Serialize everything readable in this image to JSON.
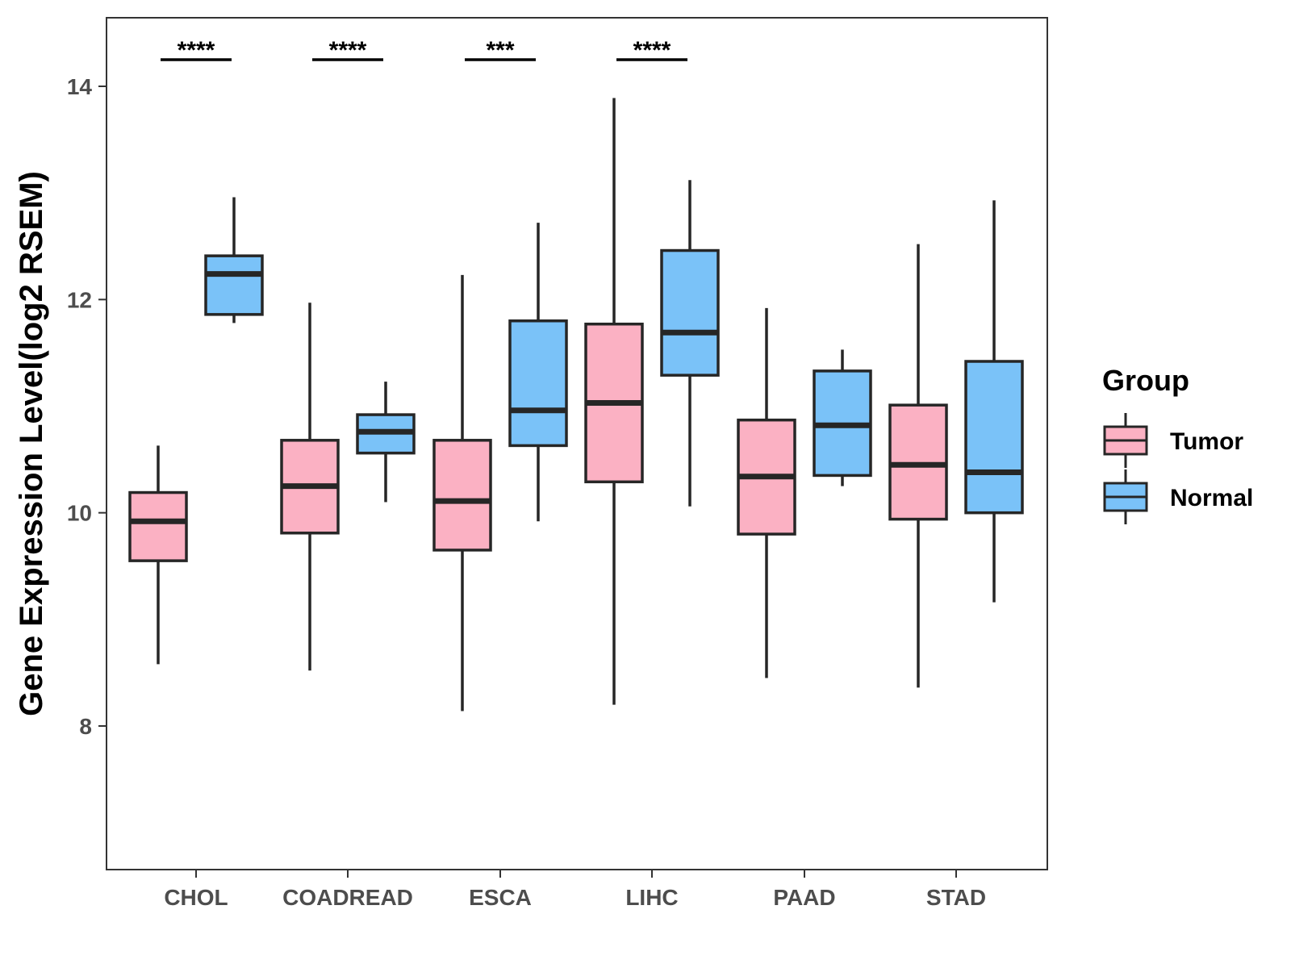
{
  "chart_data": {
    "type": "boxplot",
    "title": "",
    "xlabel": "",
    "ylabel": "Gene Expression Level(log2 RSEM)",
    "ylim": [
      6.7,
      14.65
    ],
    "yticks": [
      8,
      10,
      12,
      14
    ],
    "grid": false,
    "legend": {
      "title": "Group",
      "position": "right",
      "entries": [
        {
          "name": "Tumor",
          "color": "#FBB1C3"
        },
        {
          "name": "Normal",
          "color": "#7AC2F8"
        }
      ]
    },
    "categories": [
      "CHOL",
      "COADREAD",
      "ESCA",
      "LIHC",
      "PAAD",
      "STAD"
    ],
    "series": [
      {
        "name": "Tumor",
        "color": "#FBB1C3",
        "boxes": [
          {
            "lower": 8.58,
            "q1": 9.55,
            "median": 9.92,
            "q3": 10.19,
            "upper": 10.63
          },
          {
            "lower": 8.52,
            "q1": 9.81,
            "median": 10.25,
            "q3": 10.68,
            "upper": 11.97
          },
          {
            "lower": 8.14,
            "q1": 9.65,
            "median": 10.11,
            "q3": 10.68,
            "upper": 12.23
          },
          {
            "lower": 8.2,
            "q1": 10.29,
            "median": 11.03,
            "q3": 11.77,
            "upper": 13.89
          },
          {
            "lower": 8.45,
            "q1": 9.8,
            "median": 10.34,
            "q3": 10.87,
            "upper": 11.92
          },
          {
            "lower": 8.36,
            "q1": 9.94,
            "median": 10.45,
            "q3": 11.01,
            "upper": 12.52
          }
        ]
      },
      {
        "name": "Normal",
        "color": "#7AC2F8",
        "boxes": [
          {
            "lower": 11.78,
            "q1": 11.86,
            "median": 12.24,
            "q3": 12.41,
            "upper": 12.96
          },
          {
            "lower": 10.1,
            "q1": 10.56,
            "median": 10.76,
            "q3": 10.92,
            "upper": 11.23
          },
          {
            "lower": 9.92,
            "q1": 10.63,
            "median": 10.96,
            "q3": 11.8,
            "upper": 12.72
          },
          {
            "lower": 10.06,
            "q1": 11.29,
            "median": 11.69,
            "q3": 12.46,
            "upper": 13.12
          },
          {
            "lower": 10.25,
            "q1": 10.35,
            "median": 10.82,
            "q3": 11.33,
            "upper": 11.53
          },
          {
            "lower": 9.16,
            "q1": 10.0,
            "median": 10.38,
            "q3": 11.42,
            "upper": 12.93
          }
        ]
      }
    ],
    "significance": [
      {
        "category": "CHOL",
        "label": "****",
        "y": 14.25
      },
      {
        "category": "COADREAD",
        "label": "****",
        "y": 14.25
      },
      {
        "category": "ESCA",
        "label": "***",
        "y": 14.25
      },
      {
        "category": "LIHC",
        "label": "****",
        "y": 14.25
      }
    ]
  }
}
